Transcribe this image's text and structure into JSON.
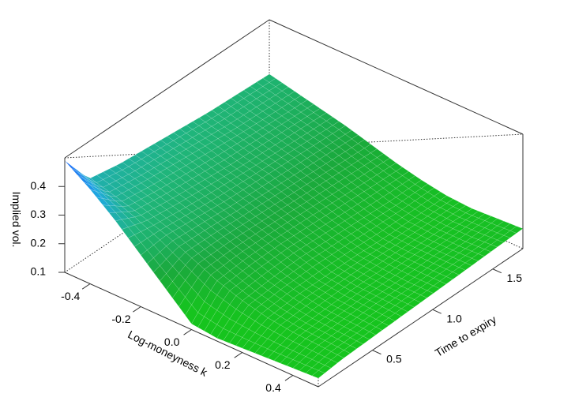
{
  "chart_data": {
    "type": "surface3d",
    "title": "",
    "x_axis": {
      "label": "Log-moneyness k",
      "ticks": [
        "-0.4",
        "-0.2",
        "0.0",
        "0.2",
        "0.4"
      ],
      "tick_values": [
        -0.4,
        -0.2,
        0.0,
        0.2,
        0.4
      ],
      "range": [
        -0.5,
        0.5
      ]
    },
    "y_axis": {
      "label": "Time to expiry",
      "ticks": [
        "0.5",
        "1.0",
        "1.5"
      ],
      "tick_values": [
        0.5,
        1.0,
        1.5
      ],
      "range": [
        0.05,
        1.75
      ]
    },
    "z_axis": {
      "label": "Implied vol.",
      "ticks": [
        "0.1",
        "0.2",
        "0.3",
        "0.4"
      ],
      "tick_values": [
        0.1,
        0.2,
        0.3,
        0.4
      ],
      "range": [
        0.1,
        0.5
      ]
    },
    "k_values": [
      -0.5,
      -0.4,
      -0.3,
      -0.2,
      -0.1,
      0.0,
      0.1,
      0.2,
      0.3,
      0.4,
      0.5
    ],
    "t_values": [
      0.05,
      0.25,
      0.5,
      0.75,
      1.0,
      1.25,
      1.5,
      1.75
    ],
    "z_values": [
      [
        0.49,
        0.37,
        0.35,
        0.34,
        0.33,
        0.32,
        0.315,
        0.31
      ],
      [
        0.43,
        0.345,
        0.33,
        0.32,
        0.31,
        0.3,
        0.295,
        0.29
      ],
      [
        0.36,
        0.32,
        0.305,
        0.295,
        0.285,
        0.28,
        0.275,
        0.27
      ],
      [
        0.28,
        0.29,
        0.28,
        0.27,
        0.265,
        0.26,
        0.255,
        0.25
      ],
      [
        0.2,
        0.25,
        0.25,
        0.245,
        0.24,
        0.235,
        0.23,
        0.225
      ],
      [
        0.12,
        0.21,
        0.22,
        0.22,
        0.215,
        0.21,
        0.205,
        0.2
      ],
      [
        0.11,
        0.18,
        0.19,
        0.195,
        0.19,
        0.185,
        0.18,
        0.18
      ],
      [
        0.115,
        0.16,
        0.17,
        0.17,
        0.17,
        0.165,
        0.165,
        0.165
      ],
      [
        0.12,
        0.15,
        0.155,
        0.16,
        0.16,
        0.16,
        0.16,
        0.16
      ],
      [
        0.125,
        0.145,
        0.15,
        0.155,
        0.155,
        0.16,
        0.16,
        0.165
      ],
      [
        0.13,
        0.14,
        0.145,
        0.15,
        0.155,
        0.16,
        0.165,
        0.17
      ]
    ],
    "colormap": [
      "#1a5cff",
      "#1faadf",
      "#1fb57a",
      "#1aa93c",
      "#16c41e"
    ],
    "grid": false,
    "legend": "none"
  }
}
